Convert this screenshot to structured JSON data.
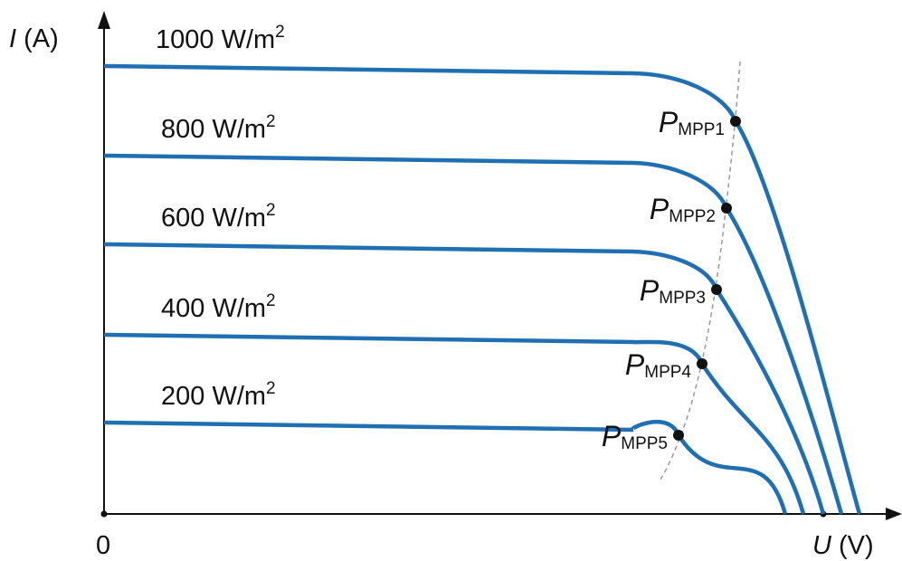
{
  "axes": {
    "y_label": {
      "symbol": "I",
      "unit": "(A)"
    },
    "x_label": {
      "symbol": "U",
      "unit": "(V)"
    },
    "origin": "0"
  },
  "curves": [
    {
      "label": "1000 W/m",
      "label_sup": "2",
      "point_symbol": "P",
      "point_sub": "MPP1"
    },
    {
      "label": "800 W/m",
      "label_sup": "2",
      "point_symbol": "P",
      "point_sub": "MPP2"
    },
    {
      "label": "600 W/m",
      "label_sup": "2",
      "point_symbol": "P",
      "point_sub": "MPP3"
    },
    {
      "label": "400 W/m",
      "label_sup": "2",
      "point_symbol": "P",
      "point_sub": "MPP4"
    },
    {
      "label": "200 W/m",
      "label_sup": "2",
      "point_symbol": "P",
      "point_sub": "MPP5"
    }
  ]
}
